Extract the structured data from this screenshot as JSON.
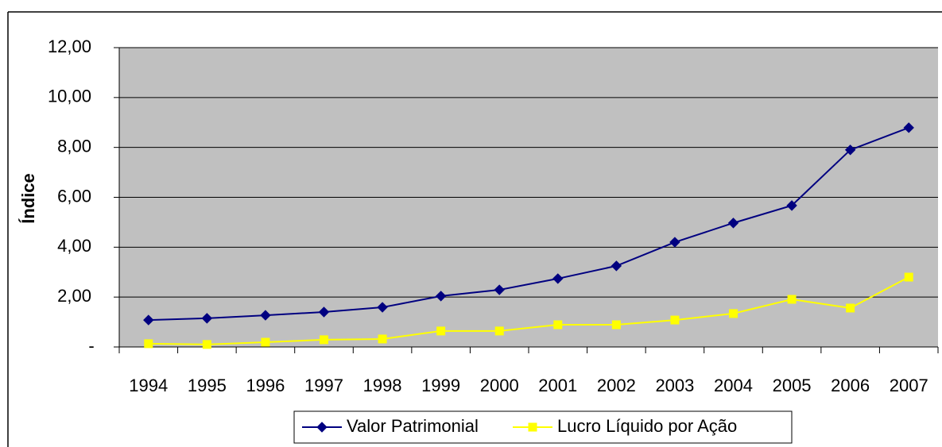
{
  "chart_data": {
    "type": "line",
    "y_label": "Índice",
    "categories": [
      "1994",
      "1995",
      "1996",
      "1997",
      "1998",
      "1999",
      "2000",
      "2001",
      "2002",
      "2003",
      "2004",
      "2005",
      "2006",
      "2007"
    ],
    "series": [
      {
        "name": "Valor Patrimonial",
        "color": "#000080",
        "marker": "diamond",
        "values": [
          1.08,
          1.15,
          1.27,
          1.4,
          1.59,
          2.04,
          2.29,
          2.74,
          3.25,
          4.2,
          4.97,
          5.67,
          7.9,
          8.79
        ]
      },
      {
        "name": "Lucro Líquido por Ação",
        "color": "#ffff00",
        "marker": "square",
        "values": [
          0.13,
          0.1,
          0.19,
          0.29,
          0.32,
          0.64,
          0.64,
          0.89,
          0.89,
          1.08,
          1.34,
          1.91,
          1.56,
          2.8
        ]
      }
    ],
    "ylim": [
      0,
      12
    ],
    "yticks": [
      {
        "value": 0,
        "label": "-"
      },
      {
        "value": 2,
        "label": "2,00"
      },
      {
        "value": 4,
        "label": "4,00"
      },
      {
        "value": 6,
        "label": "6,00"
      },
      {
        "value": 8,
        "label": "8,00"
      },
      {
        "value": 10,
        "label": "10,00"
      },
      {
        "value": 12,
        "label": "12,00"
      }
    ],
    "grid": true,
    "plot_background": "#c0c0c0",
    "legend": "bottom"
  }
}
